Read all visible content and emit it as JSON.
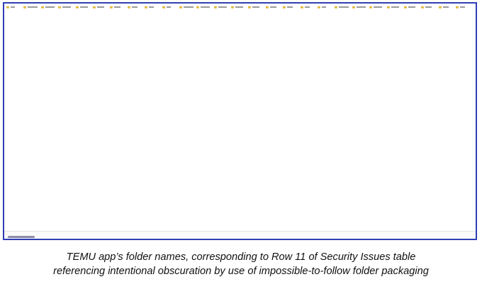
{
  "window": {
    "status_text": "",
    "folders": []
  },
  "caption": {
    "line1": "TEMU app’s folder names, corresponding to Row 11 of Security Issues table",
    "line2": "referencing intentional obscuration by use of impossible-to-follow folder packaging"
  },
  "colors": {
    "frame_border": "#2f3fb5",
    "folder_icon": "#e8c34a",
    "caption_text": "#111111"
  },
  "icons": [
    "folder-icon",
    "horizontal-scroll-thumb"
  ]
}
